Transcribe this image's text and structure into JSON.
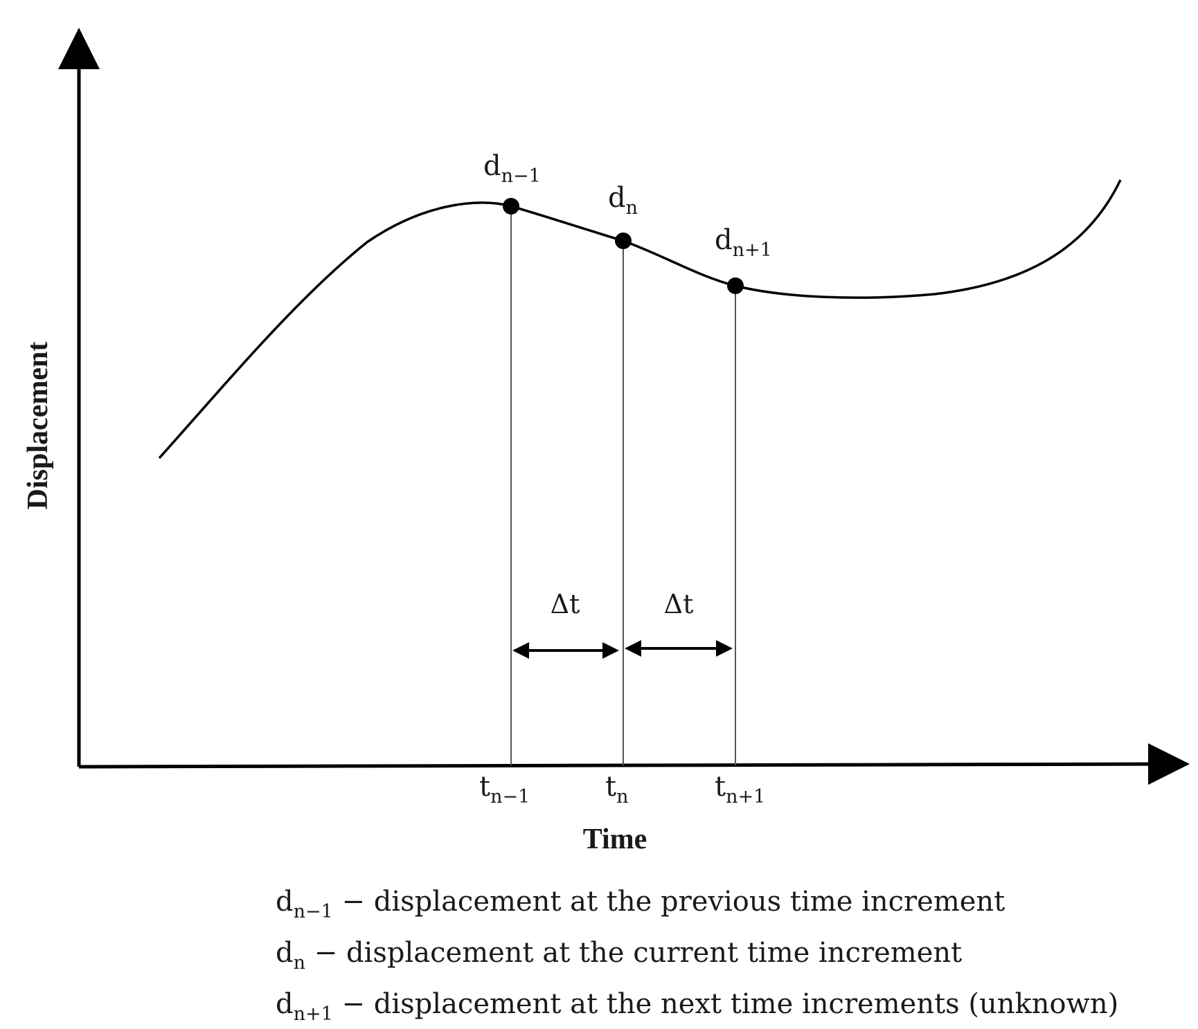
{
  "axes": {
    "x_title": "Time",
    "y_title": "Displacement"
  },
  "points": [
    {
      "base": "d",
      "sub": "n−1"
    },
    {
      "base": "d",
      "sub": "n"
    },
    {
      "base": "d",
      "sub": "n+1"
    }
  ],
  "ticks": [
    {
      "base": "t",
      "sub": "n−1"
    },
    {
      "base": "t",
      "sub": "n"
    },
    {
      "base": "t",
      "sub": "n+1"
    }
  ],
  "intervals": [
    {
      "label": "Δt"
    },
    {
      "label": "Δt"
    }
  ],
  "legend": [
    {
      "base": "d",
      "sub": "n−1",
      "text": " − displacement at the previous time increment"
    },
    {
      "base": "d",
      "sub": "n",
      "text": " − displacement at the current time increment"
    },
    {
      "base": "d",
      "sub": "n+1",
      "text": " − displacement at the next time increments (unknown)"
    }
  ],
  "colors": {
    "ink": "#000000",
    "guide": "#555555"
  }
}
